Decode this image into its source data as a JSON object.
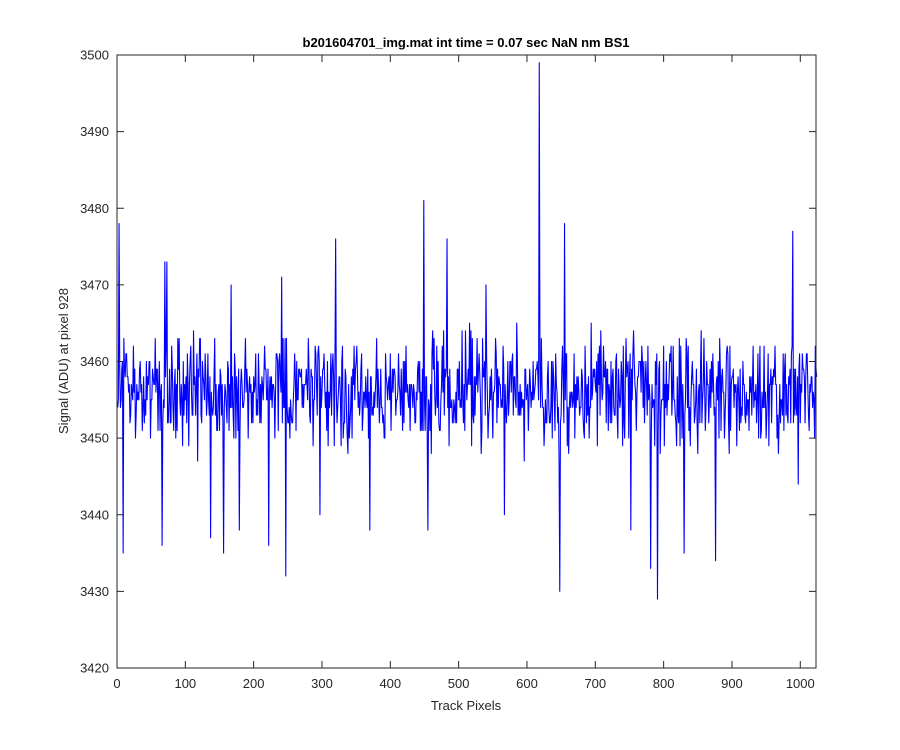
{
  "chart_data": {
    "type": "line",
    "title": "b201604701_img.mat int time = 0.07 sec  NaN nm BS1",
    "xlabel": "Track Pixels",
    "ylabel": "Signal (ADU) at pixel 928",
    "xlim": [
      0,
      1023
    ],
    "ylim": [
      3420,
      3500
    ],
    "xticks": [
      0,
      100,
      200,
      300,
      400,
      500,
      600,
      700,
      800,
      900,
      1000
    ],
    "yticks": [
      3420,
      3430,
      3440,
      3450,
      3460,
      3470,
      3480,
      3490,
      3500
    ],
    "grid": false,
    "legend": "none",
    "series": [
      {
        "color": "#0000ff",
        "noise_mean": 3456,
        "noise_amplitude": 9,
        "seed": 928,
        "n_points": 1024,
        "spikes": [
          {
            "x": 2,
            "y": 3478
          },
          {
            "x": 8,
            "y": 3435
          },
          {
            "x": 65,
            "y": 3436
          },
          {
            "x": 69,
            "y": 3473
          },
          {
            "x": 72,
            "y": 3473
          },
          {
            "x": 136,
            "y": 3437
          },
          {
            "x": 155,
            "y": 3435
          },
          {
            "x": 166,
            "y": 3470
          },
          {
            "x": 178,
            "y": 3438
          },
          {
            "x": 221,
            "y": 3436
          },
          {
            "x": 240,
            "y": 3471
          },
          {
            "x": 246,
            "y": 3432
          },
          {
            "x": 296,
            "y": 3440
          },
          {
            "x": 319,
            "y": 3476
          },
          {
            "x": 369,
            "y": 3438
          },
          {
            "x": 448,
            "y": 3481
          },
          {
            "x": 454,
            "y": 3438
          },
          {
            "x": 482,
            "y": 3476
          },
          {
            "x": 539,
            "y": 3470
          },
          {
            "x": 566,
            "y": 3440
          },
          {
            "x": 617,
            "y": 3499
          },
          {
            "x": 647,
            "y": 3430
          },
          {
            "x": 654,
            "y": 3478
          },
          {
            "x": 751,
            "y": 3438
          },
          {
            "x": 780,
            "y": 3433
          },
          {
            "x": 790,
            "y": 3429
          },
          {
            "x": 829,
            "y": 3435
          },
          {
            "x": 875,
            "y": 3434
          },
          {
            "x": 988,
            "y": 3477
          },
          {
            "x": 996,
            "y": 3444
          }
        ]
      }
    ]
  }
}
